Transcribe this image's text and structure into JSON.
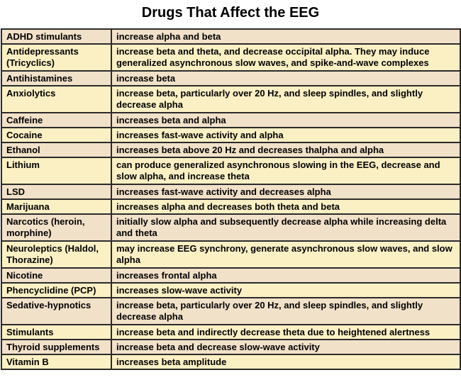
{
  "title": "Drugs That Affect the EEG",
  "rows": [
    {
      "drug": "ADHD stimulants",
      "effect": "increase alpha and beta"
    },
    {
      "drug": "Antidepressants (Tricyclics)",
      "effect": "increase beta and theta, and decrease occipital alpha. They may induce generalized asynchronous slow waves, and spike-and-wave complexes"
    },
    {
      "drug": "Antihistamines",
      "effect": "increase beta"
    },
    {
      "drug": "Anxiolytics",
      "effect": "increase beta, particularly over 20 Hz, and sleep spindles, and slightly decrease alpha"
    },
    {
      "drug": "Caffeine",
      "effect": "increases beta and alpha"
    },
    {
      "drug": "Cocaine",
      "effect": "increases fast-wave activity and alpha"
    },
    {
      "drug": "Ethanol",
      "effect": "increases beta above 20 Hz and decreases thalpha and alpha"
    },
    {
      "drug": "Lithium",
      "effect": "can produce generalized asynchronous slowing in the EEG, decrease and slow alpha, and increase theta"
    },
    {
      "drug": "LSD",
      "effect": "increases fast-wave activity and decreases alpha"
    },
    {
      "drug": "Marijuana",
      "effect": "increases alpha and decreases both theta and beta"
    },
    {
      "drug": "Narcotics (heroin, morphine)",
      "effect": "initially slow alpha and subsequently decrease alpha while increasing delta and theta"
    },
    {
      "drug": "Neuroleptics (Haldol, Thorazine)",
      "effect": "may increase EEG synchrony, generate asynchronous slow waves, and slow alpha"
    },
    {
      "drug": "Nicotine",
      "effect": "increases frontal alpha"
    },
    {
      "drug": "Phencyclidine (PCP)",
      "effect": "increases slow-wave activity"
    },
    {
      "drug": "Sedative-hypnotics",
      "effect": "increase beta, particularly over 20 Hz, and sleep spindles, and slightly decrease alpha"
    },
    {
      "drug": "Stimulants",
      "effect": "increase beta and indirectly decrease theta due to heightened alertness"
    },
    {
      "drug": "Thyroid supplements",
      "effect": "increase beta and decrease slow-wave activity"
    },
    {
      "drug": "Vitamin B",
      "effect": "increases beta amplitude"
    }
  ]
}
